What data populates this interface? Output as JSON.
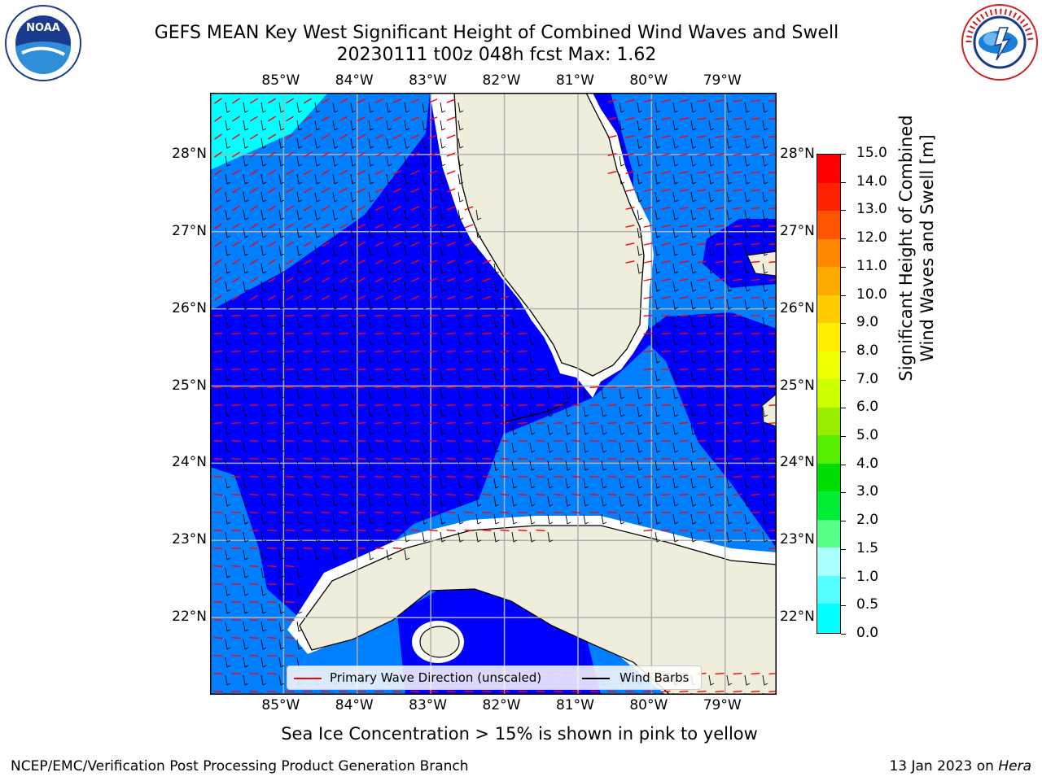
{
  "header": {
    "title_line1": "GEFS MEAN Key West Significant Height of Combined Wind Waves and Swell",
    "title_line2": "20230111 t00z 048h fcst   Max: 1.62"
  },
  "logos": {
    "left_name": "noaa-logo",
    "left_text": "NOAA",
    "left_ring_text": "NATIONAL OCEANIC AND ATMOSPHERIC ADMINISTRATION · U.S. DEPARTMENT OF COMMERCE",
    "right_name": "nws-logo",
    "right_ring_text": "NATIONAL WEATHER SERVICE"
  },
  "map": {
    "lon_labels": [
      "85°W",
      "84°W",
      "83°W",
      "82°W",
      "81°W",
      "80°W",
      "79°W"
    ],
    "lat_labels": [
      "28°N",
      "27°N",
      "26°N",
      "25°N",
      "24°N",
      "23°N",
      "22°N"
    ],
    "extent": {
      "lon_min": -86,
      "lon_max": -78.3,
      "lat_min": 21,
      "lat_max": 28.8
    },
    "colors": {
      "land": "#efeddc",
      "shallow": "#0000ff",
      "mid": "#0080ff",
      "cyan": "#00ffff",
      "grid": "#b0b0b0"
    }
  },
  "legend": {
    "wave_label": "Primary Wave Direction (unscaled)",
    "wind_label": "Wind Barbs",
    "wave_color": "#ff0000",
    "wind_color": "#000000"
  },
  "colorbar": {
    "title_line1": "Significant Height of Combined",
    "title_line2": "Wind Waves and Swell [m]",
    "ticks": [
      "15.0",
      "14.0",
      "13.0",
      "12.0",
      "11.0",
      "10.0",
      "9.0",
      "8.0",
      "7.0",
      "6.0",
      "5.0",
      "4.0",
      "3.0",
      "2.0",
      "1.5",
      "1.0",
      "0.5",
      "0.0"
    ],
    "colors": [
      "#ff0000",
      "#ff2200",
      "#ff5500",
      "#ff8800",
      "#ffaa00",
      "#ffcc00",
      "#ffee00",
      "#eeff00",
      "#ccff00",
      "#99ee00",
      "#55ee00",
      "#00dd00",
      "#00ee33",
      "#55ff88",
      "#aaffff",
      "#55ffff",
      "#00ffff",
      "#0080ff",
      "#0000ff"
    ]
  },
  "footer": {
    "note": "Sea Ice Concentration > 15% is shown in pink to yellow",
    "left": "NCEP/EMC/Verification Post Processing Product Generation Branch",
    "right_prefix": "13 Jan 2023 on ",
    "right_host": "Hera"
  }
}
